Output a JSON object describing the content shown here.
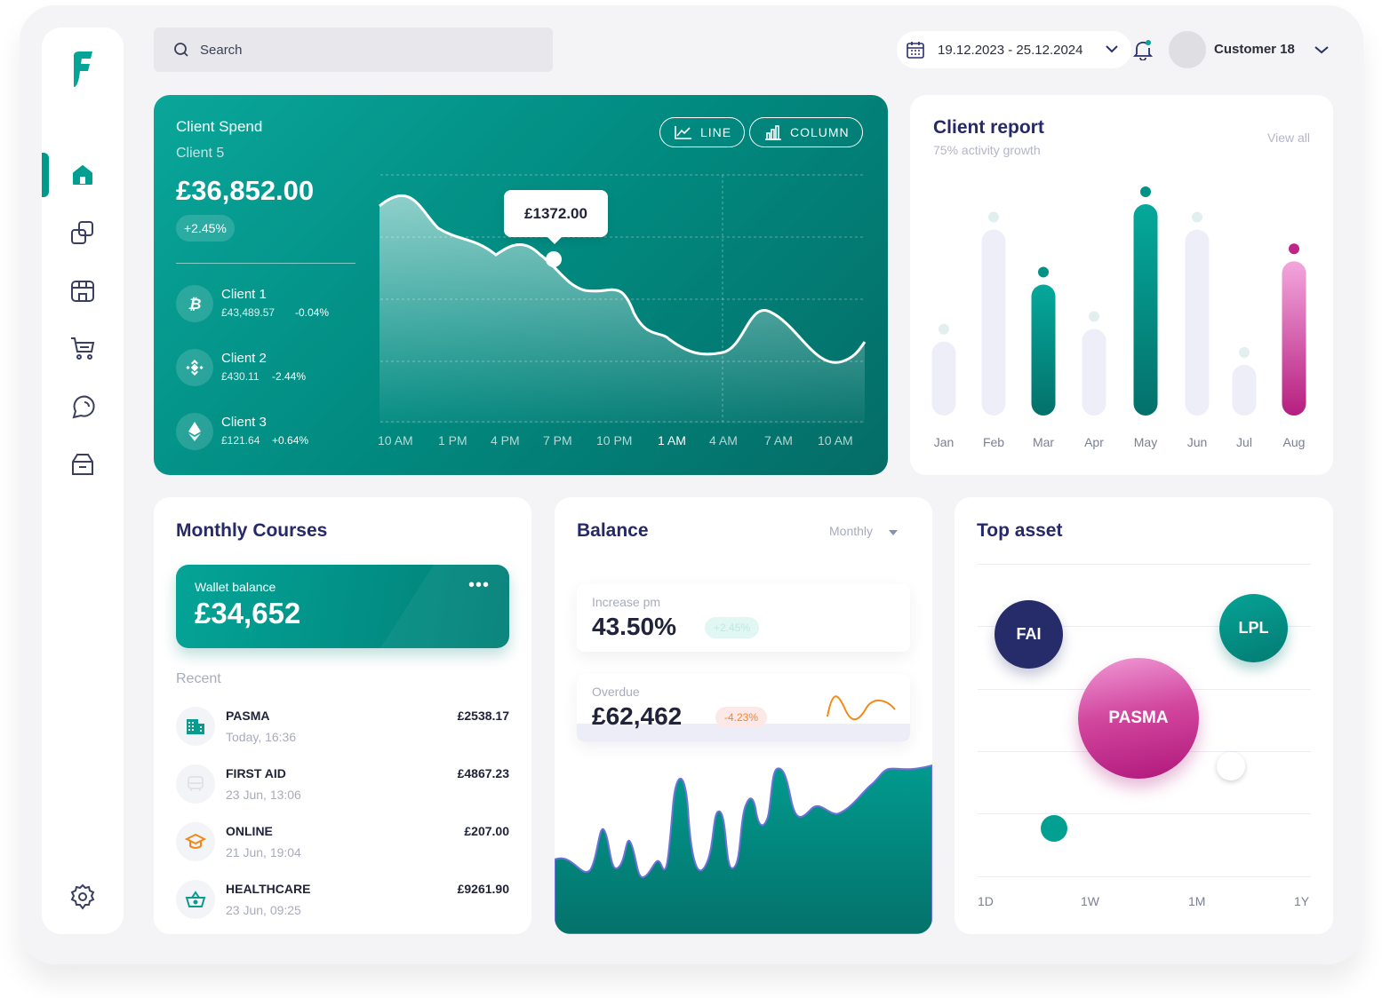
{
  "search": {
    "placeholder": "Search"
  },
  "header": {
    "date_range": "19.12.2023 - 25.12.2024",
    "user_name": "Customer 18"
  },
  "nav": [
    "home-icon",
    "layers-icon",
    "store-icon",
    "cart-icon",
    "chat-icon",
    "box-icon",
    "gear-icon"
  ],
  "client_spend": {
    "title": "Client Spend",
    "subtitle": "Client 5",
    "total": "£36,852.00",
    "change": "+2.45%",
    "toggle_line": "LINE",
    "toggle_column": "COLUMN",
    "tooltip": "£1372.00",
    "clients": [
      {
        "name": "Client 1",
        "value": "£43,489.57",
        "change": "-0.04%",
        "icon": "bitcoin-icon"
      },
      {
        "name": "Client 2",
        "value": "£430.11",
        "change": "-2.44%",
        "icon": "binance-icon"
      },
      {
        "name": "Client 3",
        "value": "£121.64",
        "change": "+0.64%",
        "icon": "ethereum-icon"
      }
    ],
    "x_ticks": [
      "10 AM",
      "1 PM",
      "4 PM",
      "7 PM",
      "10 PM",
      "1 AM",
      "4 AM",
      "7 AM",
      "10 AM"
    ]
  },
  "client_report": {
    "title": "Client report",
    "subtitle": "75% activity growth",
    "view_all": "View all",
    "chart_data": {
      "type": "bar",
      "categories": [
        "Jan",
        "Feb",
        "Mar",
        "Apr",
        "May",
        "Jun",
        "Jul",
        "Aug"
      ],
      "values": [
        35,
        88,
        62,
        41,
        100,
        88,
        24,
        73
      ],
      "highlighted": [
        "Mar",
        "May",
        "Aug"
      ],
      "colors": {
        "default": "#eeeef9",
        "teal": "#019185",
        "pink": "#c0268a"
      }
    }
  },
  "monthly_courses": {
    "title": "Monthly Courses",
    "wallet_label": "Wallet balance",
    "wallet_amount": "£34,652",
    "recent_label": "Recent",
    "transactions": [
      {
        "name": "PASMA",
        "date": "Today, 16:36",
        "amount": "£2538.17",
        "icon": "building-icon"
      },
      {
        "name": "FIRST AID",
        "date": "23 Jun, 13:06",
        "amount": "£4867.23",
        "icon": "bus-icon"
      },
      {
        "name": "ONLINE",
        "date": "21 Jun, 19:04",
        "amount": "£207.00",
        "icon": "graduation-cap-icon"
      },
      {
        "name": "HEALTHCARE",
        "date": "23 Jun, 09:25",
        "amount": "£9261.90",
        "icon": "basket-icon"
      }
    ]
  },
  "balance": {
    "title": "Balance",
    "period": "Monthly",
    "increase_label": "Increase pm",
    "increase_value": "43.50%",
    "increase_badge": "+2.45%",
    "overdue_label": "Overdue",
    "overdue_value": "£62,462",
    "overdue_badge": "-4.23%"
  },
  "top_asset": {
    "title": "Top asset",
    "bubbles": [
      "FAI",
      "LPL",
      "PASMA"
    ],
    "x_labels": [
      "1D",
      "1W",
      "1M",
      "1Y"
    ]
  }
}
